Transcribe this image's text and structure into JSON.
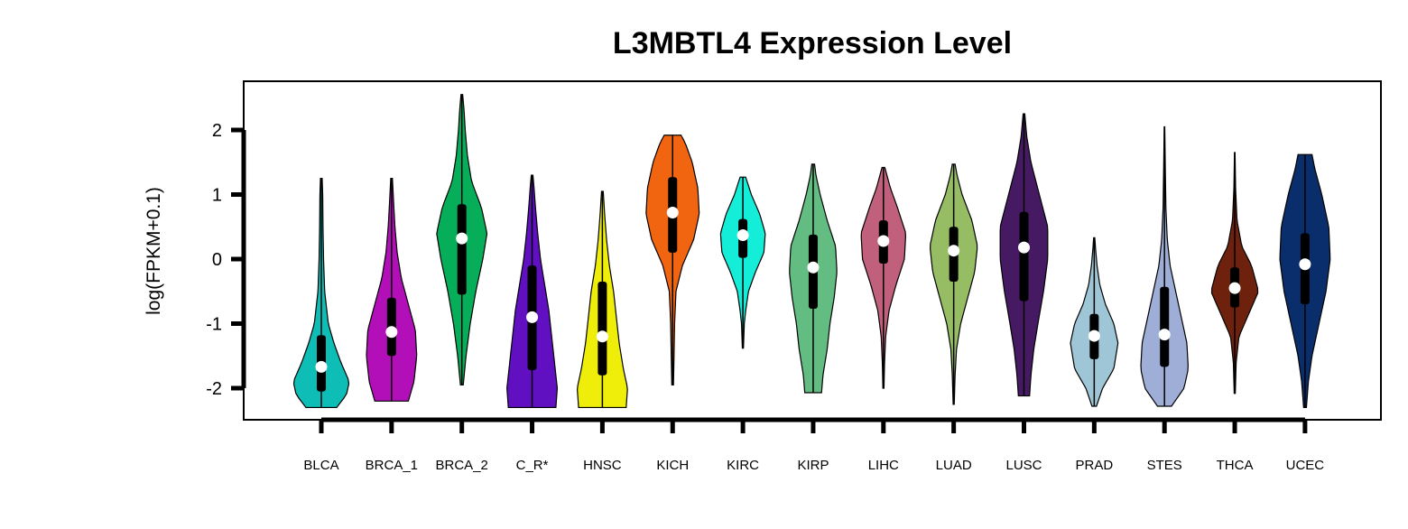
{
  "chart_data": {
    "type": "violin",
    "title": "L3MBTL4 Expression Level",
    "ylabel": "log(FPKM+0.1)",
    "xlabel": "",
    "ylim": [
      -2.5,
      2.75
    ],
    "yticks": [
      -2,
      -1,
      0,
      1,
      2
    ],
    "grid": false,
    "categories": [
      "BLCA",
      "BRCA_1",
      "BRCA_2",
      "C_R*",
      "HNSC",
      "KICH",
      "KIRC",
      "KIRP",
      "LIHC",
      "LUAD",
      "LUSC",
      "PRAD",
      "STES",
      "THCA",
      "UCEC"
    ],
    "series": [
      {
        "category": "BLCA",
        "color": "#0dbdb6",
        "median": -1.67,
        "q1": -2.05,
        "q3": -1.18,
        "min": -2.3,
        "max": 1.25,
        "density_shape": [
          [
            -2.3,
            0.55
          ],
          [
            -2.1,
            0.9
          ],
          [
            -1.9,
            1.0
          ],
          [
            -1.6,
            0.7
          ],
          [
            -1.3,
            0.45
          ],
          [
            -1.0,
            0.25
          ],
          [
            -0.5,
            0.12
          ],
          [
            0,
            0.08
          ],
          [
            0.5,
            0.06
          ],
          [
            1.0,
            0.05
          ],
          [
            1.25,
            0.03
          ]
        ]
      },
      {
        "category": "BRCA_1",
        "color": "#b30fb8",
        "median": -1.13,
        "q1": -1.5,
        "q3": -0.6,
        "min": -2.2,
        "max": 1.25,
        "density_shape": [
          [
            -2.2,
            0.6
          ],
          [
            -1.9,
            0.8
          ],
          [
            -1.5,
            0.9
          ],
          [
            -1.1,
            0.85
          ],
          [
            -0.7,
            0.6
          ],
          [
            -0.3,
            0.35
          ],
          [
            0.1,
            0.2
          ],
          [
            0.5,
            0.12
          ],
          [
            0.9,
            0.07
          ],
          [
            1.25,
            0.03
          ]
        ]
      },
      {
        "category": "BRCA_2",
        "color": "#07ae5a",
        "median": 0.32,
        "q1": -0.55,
        "q3": 0.85,
        "min": -1.95,
        "max": 2.55,
        "density_shape": [
          [
            -1.95,
            0.05
          ],
          [
            -1.5,
            0.15
          ],
          [
            -1.0,
            0.3
          ],
          [
            -0.5,
            0.5
          ],
          [
            0.0,
            0.75
          ],
          [
            0.4,
            0.9
          ],
          [
            0.8,
            0.7
          ],
          [
            1.2,
            0.35
          ],
          [
            1.6,
            0.2
          ],
          [
            2.0,
            0.12
          ],
          [
            2.3,
            0.08
          ],
          [
            2.55,
            0.03
          ]
        ]
      },
      {
        "category": "C_R*",
        "color": "#6010c0",
        "median": -0.9,
        "q1": -1.72,
        "q3": -0.1,
        "min": -2.3,
        "max": 1.3,
        "density_shape": [
          [
            -2.3,
            0.85
          ],
          [
            -2.0,
            0.9
          ],
          [
            -1.6,
            0.8
          ],
          [
            -1.2,
            0.7
          ],
          [
            -0.8,
            0.6
          ],
          [
            -0.4,
            0.45
          ],
          [
            0.0,
            0.3
          ],
          [
            0.4,
            0.2
          ],
          [
            0.8,
            0.12
          ],
          [
            1.1,
            0.07
          ],
          [
            1.3,
            0.03
          ]
        ]
      },
      {
        "category": "HNSC",
        "color": "#eeee0a",
        "median": -1.2,
        "q1": -1.8,
        "q3": -0.35,
        "min": -2.3,
        "max": 1.05,
        "density_shape": [
          [
            -2.3,
            0.85
          ],
          [
            -2.0,
            0.9
          ],
          [
            -1.7,
            0.75
          ],
          [
            -1.3,
            0.6
          ],
          [
            -0.9,
            0.5
          ],
          [
            -0.5,
            0.4
          ],
          [
            -0.1,
            0.25
          ],
          [
            0.3,
            0.15
          ],
          [
            0.7,
            0.08
          ],
          [
            1.05,
            0.03
          ]
        ]
      },
      {
        "category": "KICH",
        "color": "#f26510",
        "median": 0.72,
        "q1": 0.1,
        "q3": 1.27,
        "min": -1.95,
        "max": 1.92,
        "density_shape": [
          [
            -1.95,
            0.03
          ],
          [
            -1.5,
            0.05
          ],
          [
            -1.0,
            0.07
          ],
          [
            -0.5,
            0.12
          ],
          [
            -0.1,
            0.35
          ],
          [
            0.3,
            0.75
          ],
          [
            0.7,
            0.95
          ],
          [
            1.1,
            0.9
          ],
          [
            1.5,
            0.7
          ],
          [
            1.8,
            0.45
          ],
          [
            1.92,
            0.3
          ]
        ]
      },
      {
        "category": "KIRC",
        "color": "#14eed8",
        "median": 0.37,
        "q1": 0.02,
        "q3": 0.62,
        "min": -1.38,
        "max": 1.27,
        "density_shape": [
          [
            -1.38,
            0.02
          ],
          [
            -1.0,
            0.05
          ],
          [
            -0.8,
            0.1
          ],
          [
            -0.5,
            0.2
          ],
          [
            -0.2,
            0.45
          ],
          [
            0.1,
            0.75
          ],
          [
            0.4,
            0.8
          ],
          [
            0.7,
            0.6
          ],
          [
            1.0,
            0.3
          ],
          [
            1.27,
            0.1
          ]
        ]
      },
      {
        "category": "KIRP",
        "color": "#63bd82",
        "median": -0.13,
        "q1": -0.77,
        "q3": 0.38,
        "min": -2.07,
        "max": 1.47,
        "density_shape": [
          [
            -2.07,
            0.3
          ],
          [
            -1.8,
            0.35
          ],
          [
            -1.4,
            0.5
          ],
          [
            -1.0,
            0.6
          ],
          [
            -0.6,
            0.75
          ],
          [
            -0.2,
            0.85
          ],
          [
            0.2,
            0.8
          ],
          [
            0.6,
            0.5
          ],
          [
            1.0,
            0.25
          ],
          [
            1.3,
            0.1
          ],
          [
            1.47,
            0.05
          ]
        ]
      },
      {
        "category": "LIHC",
        "color": "#c0607d",
        "median": 0.28,
        "q1": -0.07,
        "q3": 0.6,
        "min": -2.0,
        "max": 1.42,
        "density_shape": [
          [
            -2.0,
            0.02
          ],
          [
            -1.6,
            0.04
          ],
          [
            -1.2,
            0.08
          ],
          [
            -0.8,
            0.2
          ],
          [
            -0.4,
            0.45
          ],
          [
            0.0,
            0.75
          ],
          [
            0.4,
            0.8
          ],
          [
            0.8,
            0.5
          ],
          [
            1.1,
            0.25
          ],
          [
            1.42,
            0.05
          ]
        ]
      },
      {
        "category": "LUAD",
        "color": "#96bd64",
        "median": 0.13,
        "q1": -0.35,
        "q3": 0.5,
        "min": -2.25,
        "max": 1.47,
        "density_shape": [
          [
            -2.25,
            0.02
          ],
          [
            -1.8,
            0.05
          ],
          [
            -1.4,
            0.1
          ],
          [
            -1.0,
            0.25
          ],
          [
            -0.6,
            0.5
          ],
          [
            -0.2,
            0.75
          ],
          [
            0.2,
            0.85
          ],
          [
            0.6,
            0.65
          ],
          [
            1.0,
            0.3
          ],
          [
            1.3,
            0.12
          ],
          [
            1.47,
            0.05
          ]
        ]
      },
      {
        "category": "LUSC",
        "color": "#461a63",
        "median": 0.18,
        "q1": -0.65,
        "q3": 0.73,
        "min": -2.12,
        "max": 2.25,
        "density_shape": [
          [
            -2.12,
            0.2
          ],
          [
            -1.8,
            0.25
          ],
          [
            -1.4,
            0.35
          ],
          [
            -1.0,
            0.5
          ],
          [
            -0.5,
            0.7
          ],
          [
            0.0,
            0.85
          ],
          [
            0.5,
            0.85
          ],
          [
            1.0,
            0.55
          ],
          [
            1.5,
            0.25
          ],
          [
            1.9,
            0.1
          ],
          [
            2.25,
            0.03
          ]
        ]
      },
      {
        "category": "PRAD",
        "color": "#9fc6d6",
        "median": -1.19,
        "q1": -1.55,
        "q3": -0.85,
        "min": -2.28,
        "max": 0.33,
        "density_shape": [
          [
            -2.28,
            0.08
          ],
          [
            -2.0,
            0.3
          ],
          [
            -1.7,
            0.7
          ],
          [
            -1.3,
            0.85
          ],
          [
            -1.0,
            0.7
          ],
          [
            -0.7,
            0.4
          ],
          [
            -0.4,
            0.2
          ],
          [
            -0.1,
            0.1
          ],
          [
            0.15,
            0.05
          ],
          [
            0.33,
            0.02
          ]
        ]
      },
      {
        "category": "STES",
        "color": "#9eaed6",
        "median": -1.17,
        "q1": -1.67,
        "q3": -0.43,
        "min": -2.28,
        "max": 2.05,
        "density_shape": [
          [
            -2.28,
            0.25
          ],
          [
            -2.0,
            0.7
          ],
          [
            -1.7,
            0.85
          ],
          [
            -1.3,
            0.8
          ],
          [
            -0.9,
            0.6
          ],
          [
            -0.5,
            0.4
          ],
          [
            -0.1,
            0.2
          ],
          [
            0.3,
            0.1
          ],
          [
            0.8,
            0.05
          ],
          [
            1.4,
            0.03
          ],
          [
            2.05,
            0.01
          ]
        ]
      },
      {
        "category": "THCA",
        "color": "#6e220e",
        "median": -0.45,
        "q1": -0.75,
        "q3": -0.13,
        "min": -2.08,
        "max": 1.65,
        "density_shape": [
          [
            -2.08,
            0.02
          ],
          [
            -1.6,
            0.05
          ],
          [
            -1.2,
            0.15
          ],
          [
            -0.9,
            0.45
          ],
          [
            -0.5,
            0.85
          ],
          [
            -0.1,
            0.6
          ],
          [
            0.2,
            0.25
          ],
          [
            0.6,
            0.08
          ],
          [
            1.1,
            0.03
          ],
          [
            1.65,
            0.01
          ]
        ]
      },
      {
        "category": "UCEC",
        "color": "#0a2e6b",
        "median": -0.08,
        "q1": -0.7,
        "q3": 0.4,
        "min": -2.3,
        "max": 1.62,
        "density_shape": [
          [
            -2.3,
            0.05
          ],
          [
            -1.9,
            0.12
          ],
          [
            -1.5,
            0.25
          ],
          [
            -1.0,
            0.5
          ],
          [
            -0.5,
            0.75
          ],
          [
            0.0,
            0.9
          ],
          [
            0.5,
            0.85
          ],
          [
            1.0,
            0.6
          ],
          [
            1.4,
            0.35
          ],
          [
            1.62,
            0.25
          ]
        ]
      }
    ]
  }
}
